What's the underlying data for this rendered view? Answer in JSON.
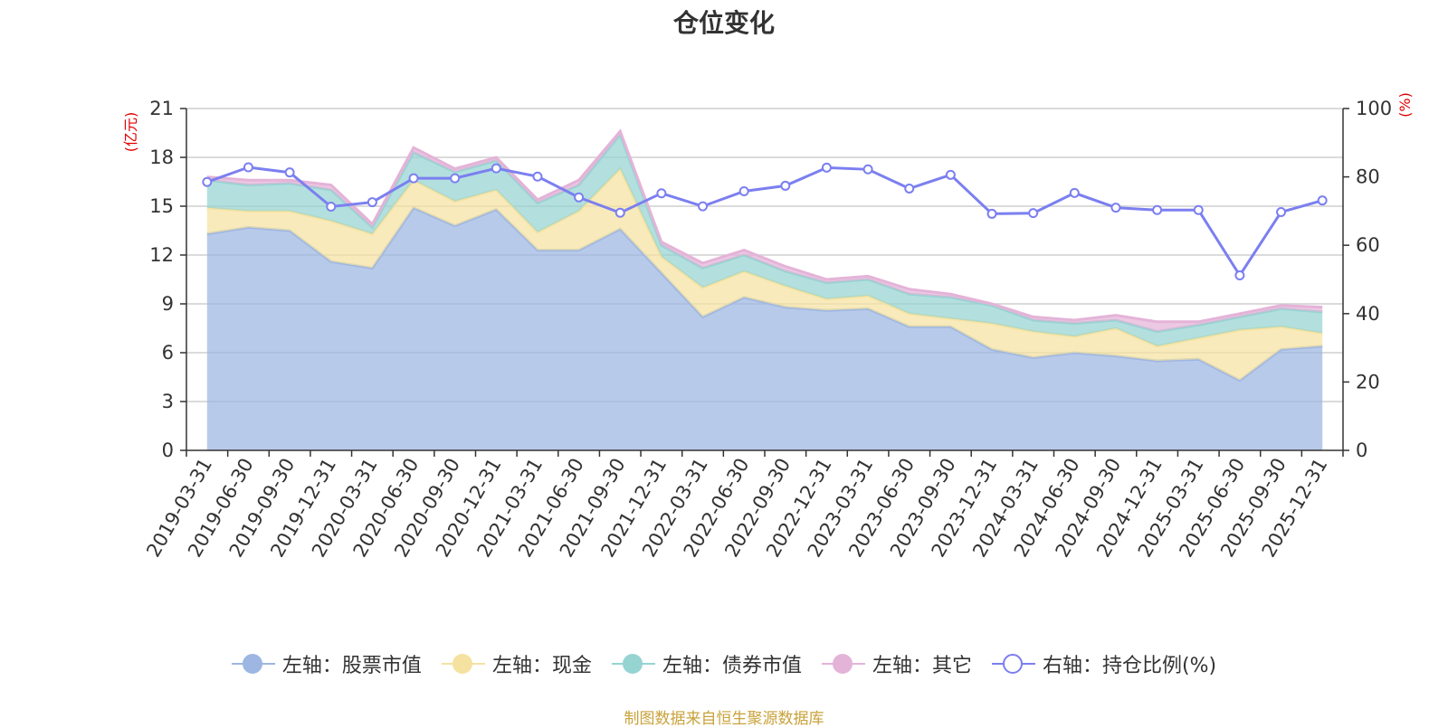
{
  "chart_data": {
    "type": "area",
    "title": "仓位变化",
    "source_note": "制图数据来自恒生聚源数据库",
    "left_axis": {
      "unit_label": "(亿元)",
      "ylim": [
        0,
        21
      ],
      "ticks": [
        "0",
        "3",
        "6",
        "9",
        "12",
        "15",
        "18",
        "21"
      ]
    },
    "right_axis": {
      "unit_label": "(%)",
      "ylim": [
        0,
        100
      ],
      "ticks": [
        "0",
        "20",
        "40",
        "60",
        "80",
        "100"
      ]
    },
    "categories": [
      "2019-03-31",
      "2019-06-30",
      "2019-09-30",
      "2019-12-31",
      "2020-03-31",
      "2020-06-30",
      "2020-09-30",
      "2020-12-31",
      "2021-03-31",
      "2021-06-30",
      "2021-09-30",
      "2021-12-31",
      "2022-03-31",
      "2022-06-30",
      "2022-09-30",
      "2022-12-31",
      "2023-03-31",
      "2023-06-30",
      "2023-09-30",
      "2023-12-31",
      "2024-03-31",
      "2024-06-30",
      "2024-09-30",
      "2024-12-31",
      "2025-03-31",
      "2025-06-30",
      "2025-09-30",
      "2025-12-31"
    ],
    "series": [
      {
        "name": "左轴：股票市值",
        "axis": "left",
        "kind": "stacked-area",
        "color": "#9db6e2",
        "values": [
          13.3,
          13.7,
          13.5,
          11.6,
          11.2,
          14.9,
          13.8,
          14.8,
          12.3,
          12.3,
          13.6,
          10.9,
          8.2,
          9.4,
          8.8,
          8.6,
          8.7,
          7.6,
          7.6,
          6.2,
          5.7,
          6.0,
          5.8,
          5.5,
          5.6,
          4.3,
          6.2,
          6.4
        ]
      },
      {
        "name": "左轴：现金",
        "axis": "left",
        "kind": "stacked-area",
        "color": "#f5e2a0",
        "values": [
          1.6,
          1.0,
          1.2,
          2.5,
          2.1,
          1.7,
          1.5,
          1.2,
          1.1,
          2.4,
          3.7,
          1.0,
          1.8,
          1.6,
          1.3,
          0.7,
          0.8,
          0.8,
          0.5,
          1.6,
          1.6,
          1.0,
          1.7,
          0.9,
          1.3,
          3.1,
          1.4,
          0.8
        ]
      },
      {
        "name": "左轴：债券市值",
        "axis": "left",
        "kind": "stacked-area",
        "color": "#96d4d2",
        "values": [
          1.7,
          1.6,
          1.7,
          1.9,
          0.4,
          1.7,
          1.8,
          1.8,
          1.8,
          1.6,
          2.1,
          0.7,
          1.2,
          1.0,
          0.9,
          1.0,
          1.0,
          1.2,
          1.3,
          1.1,
          0.7,
          0.8,
          0.5,
          0.9,
          0.8,
          0.8,
          1.1,
          1.3
        ]
      },
      {
        "name": "左轴：其它",
        "axis": "left",
        "kind": "stacked-area",
        "color": "#e4b3d8",
        "values": [
          0.2,
          0.3,
          0.2,
          0.3,
          0.2,
          0.3,
          0.2,
          0.2,
          0.2,
          0.3,
          0.2,
          0.2,
          0.3,
          0.3,
          0.3,
          0.2,
          0.2,
          0.3,
          0.2,
          0.1,
          0.2,
          0.2,
          0.3,
          0.6,
          0.2,
          0.2,
          0.2,
          0.3
        ]
      },
      {
        "name": "右轴：持仓比例(%)",
        "axis": "right",
        "kind": "line",
        "color": "#7b7ff0",
        "values": [
          78.5,
          82.8,
          81.3,
          71.3,
          72.6,
          79.6,
          79.6,
          82.5,
          80.1,
          74.0,
          69.5,
          75.2,
          71.4,
          75.8,
          77.4,
          82.7,
          82.2,
          76.6,
          80.6,
          69.2,
          69.4,
          75.3,
          71.0,
          70.3,
          70.3,
          51.2,
          69.7,
          73.1
        ]
      }
    ]
  }
}
